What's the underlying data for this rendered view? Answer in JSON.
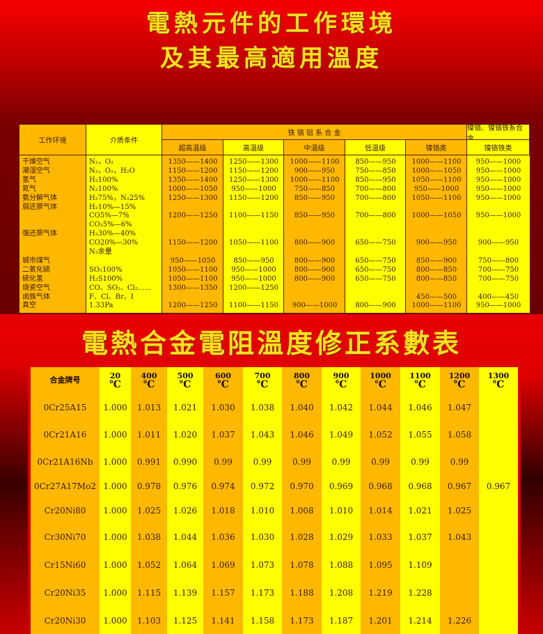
{
  "title1": {
    "line1": "電熱元件的工作環境",
    "line2": "及其最高適用溫度"
  },
  "table1": {
    "headers": {
      "env": "工作环境",
      "medium": "介质条件",
      "fecral": "铁 铬 铝 系 合 金",
      "nicr": "镍铬、镍铬铁系合金",
      "sub": [
        "超高温级",
        "高温级",
        "中温级",
        "低温级",
        "镍铬类",
        "镍铬铁类"
      ]
    },
    "lines": [
      [
        "干燥空气",
        "N₂，O₂",
        "1350——1400",
        "1250——1300",
        "1000——1100",
        "850——950",
        "1000——1100",
        "950——1000"
      ],
      [
        "潮湿空气",
        "N₂，O₂，H₂O",
        "1150——1200",
        "1150——1200",
        "900——950",
        "750——850",
        "1000——1050",
        "950——1000"
      ],
      [
        "氢气",
        "H₂100%",
        "1350——1400",
        "1250——1300",
        "1000——1100",
        "850——950",
        "1050——1100",
        "950——1000"
      ],
      [
        "氮气",
        "N₂100%",
        "1000——1050",
        "950——1000",
        "750——850",
        "700——800",
        "950——1000",
        "950——1000"
      ],
      [
        "氨分解气体",
        "H₂75%，N₂25%",
        "1250——1300",
        "1150——1200",
        "850——950",
        "700——800",
        "1050——1100",
        "950——1000"
      ],
      [
        "弱还原气体",
        "H₂10%—15%",
        "",
        "",
        "",
        "",
        "",
        ""
      ],
      [
        "",
        "CO5%—7%",
        "1200——1250",
        "1100——1150",
        "850——950",
        "700——800",
        "1000——1050",
        "950——1000"
      ],
      [
        "",
        "CO₂5%—6%",
        "",
        "",
        "",
        "",
        "",
        ""
      ],
      [
        "强还原气体",
        "H₂30%—40%",
        "",
        "",
        "",
        "",
        "",
        ""
      ],
      [
        "",
        "CO20%—30%",
        "1150——1200",
        "1050——1100",
        "800——900",
        "650——750",
        "900——950",
        "900——950"
      ],
      [
        "",
        "N₂余量",
        "",
        "",
        "",
        "",
        "",
        ""
      ],
      [
        "城市煤气",
        "",
        "950——1050",
        "850——950",
        "800——900",
        "650——750",
        "850——900",
        "750——800"
      ],
      [
        "二氧化硫",
        "SO₂100%",
        "1050——1100",
        "950——1000",
        "800——900",
        "650——750",
        "800——850",
        "700——750"
      ],
      [
        "硫化氢",
        "H₂S100%",
        "1050——1100",
        "950——1000",
        "800——900",
        "650——750",
        "800——850",
        "700——750"
      ],
      [
        "烧瓷空气",
        "CO、SO₂、Cl₂……",
        "1300——1350",
        "1200——1250",
        "",
        "",
        "",
        ""
      ],
      [
        "卤族气体",
        "F、Cl、Br、I",
        "",
        "",
        "",
        "",
        "450——500",
        "400——450"
      ],
      [
        "真空",
        "1.33Pa",
        "1200——1250",
        "1100——1150",
        "900——1000",
        "800——900",
        "1000——1100",
        "950——1000"
      ]
    ]
  },
  "title2": "電熱合金電阻溫度修正系數表",
  "table2": {
    "first_header": "合金牌号",
    "unit": "℃",
    "temps": [
      "20",
      "400",
      "500",
      "600",
      "700",
      "800",
      "900",
      "1000",
      "1100",
      "1200",
      "1300"
    ],
    "rows": [
      {
        "alloy": "0Cr25A15",
        "values": [
          "1.000",
          "1.013",
          "1.021",
          "1.030",
          "1.038",
          "1.040",
          "1.042",
          "1.044",
          "1.046",
          "1.047",
          ""
        ]
      },
      {
        "alloy": "0Cr21A16",
        "values": [
          "1.000",
          "1.011",
          "1.020",
          "1.037",
          "1.043",
          "1.046",
          "1.049",
          "1.052",
          "1.055",
          "1.058",
          ""
        ]
      },
      {
        "alloy": "0Cr21A16Nb",
        "values": [
          "1.000",
          "0.991",
          "0.990",
          "0.99",
          "0.99",
          "0.99",
          "0.99",
          "0.99",
          "0.99",
          "0.99",
          ""
        ]
      },
      {
        "alloy": "0Cr27A17Mo2",
        "values": [
          "1.000",
          "0.978",
          "0.976",
          "0.974",
          "0.972",
          "0.970",
          "0.969",
          "0.968",
          "0.968",
          "0.967",
          "0.967"
        ]
      },
      {
        "alloy": "Cr20Ni80",
        "values": [
          "1.000",
          "1.025",
          "1.026",
          "1.018",
          "1.010",
          "1.008",
          "1.010",
          "1.014",
          "1.021",
          "1.025",
          ""
        ]
      },
      {
        "alloy": "Cr30Ni70",
        "values": [
          "1.000",
          "1.038",
          "1.044",
          "1.036",
          "1.030",
          "1.028",
          "1.029",
          "1.033",
          "1.037",
          "1.043",
          ""
        ]
      },
      {
        "alloy": "Cr15Ni60",
        "values": [
          "1.000",
          "1.052",
          "1.064",
          "1.069",
          "1.073",
          "1.078",
          "1.088",
          "1.095",
          "1.109",
          "",
          ""
        ]
      },
      {
        "alloy": "Cr20Ni35",
        "values": [
          "1.000",
          "1.115",
          "1.139",
          "1.157",
          "1.173",
          "1.188",
          "1.208",
          "1.219",
          "1.228",
          "",
          ""
        ]
      },
      {
        "alloy": "Cr20Ni30",
        "values": [
          "1.000",
          "1.103",
          "1.125",
          "1.141",
          "1.158",
          "1.173",
          "1.187",
          "1.201",
          "1.214",
          "1.226",
          ""
        ]
      }
    ]
  },
  "colors": {
    "orange": "#ffb800",
    "yellow": "#ffff00",
    "title": "#ffe020",
    "background": "#e00000"
  }
}
